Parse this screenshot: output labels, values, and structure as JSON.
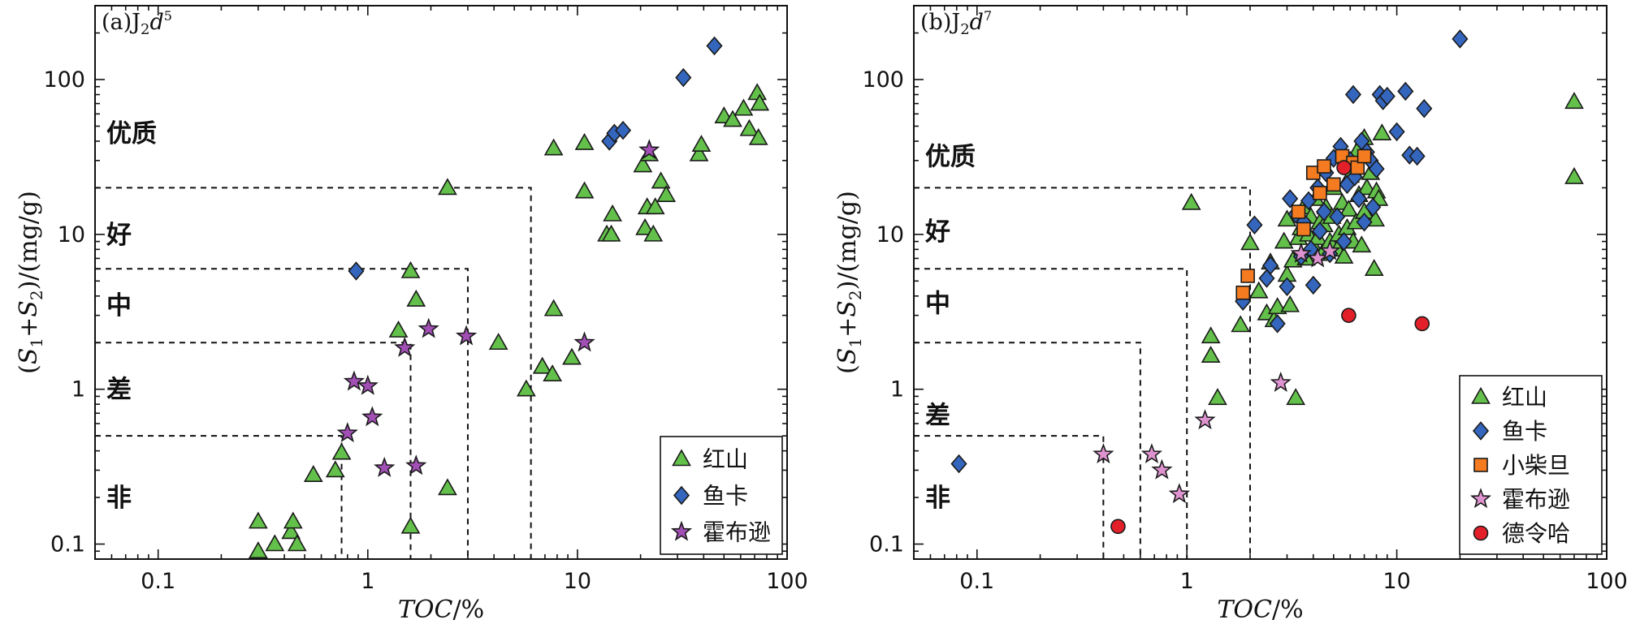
{
  "chart_data": [
    {
      "panel_label": "(a)J",
      "panel_sub": "2",
      "panel_italic": "d",
      "panel_sup": "5",
      "type": "scatter",
      "xscale": "log",
      "yscale": "log",
      "xlim": [
        0.05,
        100
      ],
      "ylim": [
        0.08,
        300
      ],
      "xticks": [
        0.1,
        1,
        10,
        100
      ],
      "xtick_labels": [
        "0.1",
        "1",
        "10",
        "100"
      ],
      "yticks": [
        0.1,
        1,
        10,
        100
      ],
      "ytick_labels": [
        "0.1",
        "1",
        "10",
        "100"
      ],
      "xlabel": "TOC/%",
      "ylabel": "(S1+S2)/(mg/g)",
      "zone_labels": [
        {
          "text": "优质",
          "y": 45
        },
        {
          "text": "好",
          "y": 10
        },
        {
          "text": "中",
          "y": 3.5
        },
        {
          "text": "差",
          "y": 1.0
        },
        {
          "text": "非",
          "y": 0.2
        }
      ],
      "guides": [
        {
          "y": 20,
          "x": 6
        },
        {
          "y": 6,
          "x": 3
        },
        {
          "y": 2,
          "x": 1.6
        },
        {
          "y": 0.5,
          "x": 0.75
        }
      ],
      "legend_position": "bottom-right",
      "series": [
        {
          "name": "红山",
          "marker": "triangle",
          "color": "#63c04a",
          "points": [
            [
              0.3,
              0.14
            ],
            [
              0.3,
              0.09
            ],
            [
              0.36,
              0.1
            ],
            [
              0.43,
              0.12
            ],
            [
              0.44,
              0.14
            ],
            [
              0.46,
              0.1
            ],
            [
              0.55,
              0.28
            ],
            [
              0.7,
              0.3
            ],
            [
              0.75,
              0.39
            ],
            [
              1.4,
              2.4
            ],
            [
              1.6,
              5.8
            ],
            [
              1.7,
              3.8
            ],
            [
              1.6,
              0.13
            ],
            [
              2.4,
              0.23
            ],
            [
              2.4,
              20
            ],
            [
              4.2,
              2
            ],
            [
              5.7,
              1
            ],
            [
              6.8,
              1.4
            ],
            [
              7.6,
              1.25
            ],
            [
              7.7,
              3.3
            ],
            [
              7.7,
              36
            ],
            [
              9.4,
              1.6
            ],
            [
              10.8,
              19
            ],
            [
              10.8,
              39
            ],
            [
              13.8,
              10
            ],
            [
              14.5,
              10
            ],
            [
              14.7,
              13.5
            ],
            [
              20.5,
              28
            ],
            [
              21,
              11
            ],
            [
              21.5,
              15
            ],
            [
              22,
              33
            ],
            [
              23,
              10
            ],
            [
              23.5,
              15
            ],
            [
              25,
              22
            ],
            [
              26.5,
              18
            ],
            [
              38,
              33
            ],
            [
              39,
              38
            ],
            [
              50,
              58
            ],
            [
              55,
              55
            ],
            [
              62,
              65
            ],
            [
              66,
              48
            ],
            [
              72,
              82
            ],
            [
              73,
              42
            ],
            [
              74,
              70
            ]
          ]
        },
        {
          "name": "鱼卡",
          "marker": "diamond",
          "color": "#3466be",
          "points": [
            [
              0.88,
              5.8
            ],
            [
              14.2,
              40
            ],
            [
              15,
              45
            ],
            [
              16.5,
              47
            ],
            [
              32,
              103
            ],
            [
              45,
              165
            ]
          ]
        },
        {
          "name": "霍布逊",
          "marker": "star",
          "color": "#a24fb5",
          "points": [
            [
              0.8,
              0.52
            ],
            [
              0.86,
              1.12
            ],
            [
              1.0,
              1.05
            ],
            [
              1.05,
              0.66
            ],
            [
              1.2,
              0.31
            ],
            [
              1.5,
              1.85
            ],
            [
              1.7,
              0.32
            ],
            [
              1.95,
              2.45
            ],
            [
              2.95,
              2.2
            ],
            [
              10.8,
              2
            ],
            [
              22,
              35
            ]
          ]
        }
      ]
    },
    {
      "panel_label": "(b)J",
      "panel_sub": "2",
      "panel_italic": "d",
      "panel_sup": "7",
      "type": "scatter",
      "xscale": "log",
      "yscale": "log",
      "xlim": [
        0.05,
        100
      ],
      "ylim": [
        0.08,
        300
      ],
      "xticks": [
        0.1,
        1,
        10,
        100
      ],
      "xtick_labels": [
        "0.1",
        "1",
        "10",
        "100"
      ],
      "yticks": [
        0.1,
        1,
        10,
        100
      ],
      "ytick_labels": [
        "0.1",
        "1",
        "10",
        "100"
      ],
      "xlabel": "TOC/%",
      "ylabel": "(S1+S2)/(mg/g)",
      "zone_labels": [
        {
          "text": "优质",
          "y": 32
        },
        {
          "text": "好",
          "y": 10.5
        },
        {
          "text": "中",
          "y": 3.6
        },
        {
          "text": "差",
          "y": 0.68
        },
        {
          "text": "非",
          "y": 0.2
        }
      ],
      "guides": [
        {
          "y": 20,
          "x": 2
        },
        {
          "y": 6,
          "x": 1
        },
        {
          "y": 2,
          "x": 0.6
        },
        {
          "y": 0.5,
          "x": 0.4
        }
      ],
      "legend_position": "bottom-right",
      "series": [
        {
          "name": "红山",
          "marker": "triangle",
          "color": "#63c04a",
          "points": [
            [
              1.05,
              16
            ],
            [
              1.3,
              2.2
            ],
            [
              1.3,
              1.65
            ],
            [
              1.4,
              0.88
            ],
            [
              1.8,
              2.6
            ],
            [
              2.0,
              8.8
            ],
            [
              2.2,
              4.3
            ],
            [
              2.4,
              3.1
            ],
            [
              2.5,
              6.6
            ],
            [
              2.6,
              2.8
            ],
            [
              2.7,
              3.4
            ],
            [
              2.9,
              9
            ],
            [
              3.0,
              5.5
            ],
            [
              3.0,
              12.5
            ],
            [
              3.1,
              3.5
            ],
            [
              3.2,
              6.8
            ],
            [
              3.3,
              0.88
            ],
            [
              3.4,
              9.5
            ],
            [
              3.5,
              11
            ],
            [
              3.6,
              15
            ],
            [
              3.7,
              7
            ],
            [
              3.8,
              10
            ],
            [
              3.9,
              13
            ],
            [
              4.0,
              8.5
            ],
            [
              4.1,
              17
            ],
            [
              4.2,
              9.5
            ],
            [
              4.3,
              12
            ],
            [
              4.4,
              7.5
            ],
            [
              4.5,
              11.5
            ],
            [
              4.6,
              15
            ],
            [
              4.8,
              9
            ],
            [
              4.9,
              13
            ],
            [
              5.0,
              20
            ],
            [
              5.2,
              8
            ],
            [
              5.3,
              10
            ],
            [
              5.5,
              16
            ],
            [
              5.6,
              7.2
            ],
            [
              5.8,
              11
            ],
            [
              5.9,
              14.5
            ],
            [
              6.0,
              24
            ],
            [
              6.2,
              9
            ],
            [
              6.4,
              12
            ],
            [
              6.6,
              18
            ],
            [
              6.8,
              8.5
            ],
            [
              7.0,
              14
            ],
            [
              7.2,
              20
            ],
            [
              7.5,
              25
            ],
            [
              7.8,
              6
            ],
            [
              7.9,
              12.5
            ],
            [
              8.0,
              19
            ],
            [
              8.2,
              17
            ],
            [
              8.5,
              45
            ],
            [
              6.5,
              35
            ],
            [
              7.0,
              42
            ],
            [
              70,
              72
            ],
            [
              70,
              23.5
            ]
          ]
        },
        {
          "name": "鱼卡",
          "marker": "diamond",
          "color": "#3466be",
          "points": [
            [
              0.082,
              0.33
            ],
            [
              1.85,
              3.7
            ],
            [
              2.1,
              11.5
            ],
            [
              2.4,
              5.2
            ],
            [
              2.5,
              6.3
            ],
            [
              2.7,
              2.65
            ],
            [
              3.0,
              4.6
            ],
            [
              3.1,
              17
            ],
            [
              3.3,
              13.5
            ],
            [
              3.5,
              7.2
            ],
            [
              3.6,
              12
            ],
            [
              3.8,
              16.5
            ],
            [
              3.9,
              8
            ],
            [
              4.0,
              4.7
            ],
            [
              4.2,
              20
            ],
            [
              4.3,
              10.5
            ],
            [
              4.5,
              14
            ],
            [
              4.6,
              25
            ],
            [
              4.8,
              7.5
            ],
            [
              5.0,
              31
            ],
            [
              5.2,
              13
            ],
            [
              5.4,
              37
            ],
            [
              5.6,
              9
            ],
            [
              5.8,
              21
            ],
            [
              6.0,
              30
            ],
            [
              6.2,
              80
            ],
            [
              6.3,
              23.5
            ],
            [
              6.6,
              17
            ],
            [
              6.8,
              40
            ],
            [
              7.0,
              12
            ],
            [
              7.2,
              34
            ],
            [
              7.5,
              30
            ],
            [
              7.7,
              15
            ],
            [
              8.0,
              26.5
            ],
            [
              8.3,
              80
            ],
            [
              8.6,
              73
            ],
            [
              9.0,
              78
            ],
            [
              10.0,
              46
            ],
            [
              11.0,
              84
            ],
            [
              11.5,
              32.5
            ],
            [
              12.5,
              32
            ],
            [
              13.5,
              65
            ],
            [
              20,
              183
            ]
          ]
        },
        {
          "name": "小柴旦",
          "marker": "square",
          "color": "#f47b20",
          "points": [
            [
              1.85,
              4.2
            ],
            [
              1.95,
              5.4
            ],
            [
              3.4,
              14
            ],
            [
              3.6,
              10.8
            ],
            [
              4.0,
              25
            ],
            [
              4.3,
              18.5
            ],
            [
              4.5,
              27.5
            ],
            [
              5.0,
              21
            ],
            [
              5.5,
              32
            ],
            [
              6.2,
              29
            ],
            [
              6.5,
              27
            ],
            [
              7.0,
              32
            ]
          ]
        },
        {
          "name": "霍布逊",
          "marker": "star",
          "color": "#de93d0",
          "points": [
            [
              0.4,
              0.38
            ],
            [
              0.68,
              0.38
            ],
            [
              0.76,
              0.3
            ],
            [
              0.92,
              0.21
            ],
            [
              1.22,
              0.63
            ],
            [
              2.8,
              1.1
            ],
            [
              3.5,
              7.5
            ],
            [
              4.2,
              7
            ],
            [
              4.8,
              7.8
            ]
          ]
        },
        {
          "name": "德令哈",
          "marker": "circle",
          "color": "#e3202a",
          "points": [
            [
              0.47,
              0.13
            ],
            [
              5.6,
              27
            ],
            [
              5.9,
              3
            ],
            [
              13.2,
              2.65
            ]
          ]
        }
      ]
    }
  ]
}
